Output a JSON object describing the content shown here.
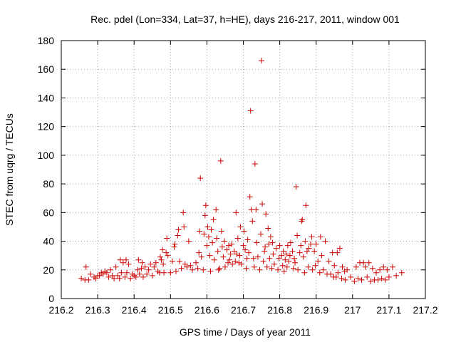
{
  "chart_data": {
    "type": "scatter",
    "title": "Rec. pdel (Lon=334, Lat=37, h=HE), days 216-217, 2011, window 001",
    "xlabel": "GPS time / Days of year 2011",
    "ylabel": "STEC from uqrg / TECUs",
    "xlim": [
      216.2,
      217.2
    ],
    "ylim": [
      0,
      180
    ],
    "xticks": [
      216.2,
      216.3,
      216.4,
      216.5,
      216.6,
      216.7,
      216.8,
      216.9,
      217,
      217.1,
      217.2
    ],
    "xtick_labels": [
      "216.2",
      "216.3",
      "216.4",
      "216.5",
      "216.6",
      "216.7",
      "216.8",
      "216.9",
      "217",
      "217.1",
      "217.2"
    ],
    "yticks": [
      0,
      20,
      40,
      60,
      80,
      100,
      120,
      140,
      160,
      180
    ],
    "ytick_labels": [
      "0",
      "20",
      "40",
      "60",
      "80",
      "100",
      "120",
      "140",
      "160",
      "180"
    ],
    "grid": true,
    "marker": "+",
    "color": "#cc0000",
    "points": [
      [
        216.255,
        14
      ],
      [
        216.265,
        13
      ],
      [
        216.268,
        22
      ],
      [
        216.275,
        13
      ],
      [
        216.28,
        17
      ],
      [
        216.29,
        15
      ],
      [
        216.295,
        14
      ],
      [
        216.3,
        16
      ],
      [
        216.305,
        16
      ],
      [
        216.31,
        18
      ],
      [
        216.315,
        17
      ],
      [
        216.32,
        19
      ],
      [
        216.325,
        18
      ],
      [
        216.33,
        15
      ],
      [
        216.335,
        20
      ],
      [
        216.34,
        16
      ],
      [
        216.345,
        14
      ],
      [
        216.35,
        22
      ],
      [
        216.355,
        16
      ],
      [
        216.36,
        14
      ],
      [
        216.362,
        27
      ],
      [
        216.365,
        18
      ],
      [
        216.37,
        25
      ],
      [
        216.375,
        15
      ],
      [
        216.378,
        27
      ],
      [
        216.38,
        18
      ],
      [
        216.385,
        24
      ],
      [
        216.39,
        14
      ],
      [
        216.395,
        17
      ],
      [
        216.4,
        16
      ],
      [
        216.405,
        15
      ],
      [
        216.41,
        20
      ],
      [
        216.412,
        27
      ],
      [
        216.415,
        17
      ],
      [
        216.42,
        21
      ],
      [
        216.422,
        25
      ],
      [
        216.425,
        15
      ],
      [
        216.43,
        22
      ],
      [
        216.435,
        17
      ],
      [
        216.44,
        20
      ],
      [
        216.445,
        24
      ],
      [
        216.45,
        16
      ],
      [
        216.455,
        22
      ],
      [
        216.46,
        25
      ],
      [
        216.465,
        19
      ],
      [
        216.47,
        18
      ],
      [
        216.472,
        29
      ],
      [
        216.475,
        27
      ],
      [
        216.478,
        34
      ],
      [
        216.48,
        24
      ],
      [
        216.482,
        18
      ],
      [
        216.488,
        32
      ],
      [
        216.49,
        42
      ],
      [
        216.493,
        30
      ],
      [
        216.5,
        18
      ],
      [
        216.505,
        26
      ],
      [
        216.51,
        36
      ],
      [
        216.512,
        38
      ],
      [
        216.515,
        19
      ],
      [
        216.52,
        44
      ],
      [
        216.522,
        48
      ],
      [
        216.525,
        26
      ],
      [
        216.53,
        21
      ],
      [
        216.535,
        60
      ],
      [
        216.537,
        50
      ],
      [
        216.54,
        24
      ],
      [
        216.545,
        22
      ],
      [
        216.55,
        40
      ],
      [
        216.555,
        23
      ],
      [
        216.56,
        20
      ],
      [
        216.57,
        25
      ],
      [
        216.575,
        21
      ],
      [
        216.578,
        32
      ],
      [
        216.58,
        47
      ],
      [
        216.582,
        84
      ],
      [
        216.585,
        29
      ],
      [
        216.59,
        20
      ],
      [
        216.592,
        45
      ],
      [
        216.595,
        58
      ],
      [
        216.597,
        65
      ],
      [
        216.6,
        37
      ],
      [
        216.602,
        50
      ],
      [
        216.605,
        43
      ],
      [
        216.608,
        30
      ],
      [
        216.61,
        19
      ],
      [
        216.612,
        48
      ],
      [
        216.615,
        39
      ],
      [
        216.618,
        55
      ],
      [
        216.62,
        27
      ],
      [
        216.625,
        62
      ],
      [
        216.627,
        42
      ],
      [
        216.63,
        33
      ],
      [
        216.632,
        20
      ],
      [
        216.635,
        21
      ],
      [
        216.638,
        96
      ],
      [
        216.64,
        47
      ],
      [
        216.642,
        36
      ],
      [
        216.645,
        29
      ],
      [
        216.648,
        40
      ],
      [
        216.65,
        22
      ],
      [
        216.655,
        34
      ],
      [
        216.658,
        25
      ],
      [
        216.66,
        37
      ],
      [
        216.662,
        27
      ],
      [
        216.665,
        31
      ],
      [
        216.668,
        38
      ],
      [
        216.67,
        24
      ],
      [
        216.675,
        33
      ],
      [
        216.678,
        26
      ],
      [
        216.68,
        60
      ],
      [
        216.682,
        31
      ],
      [
        216.685,
        42
      ],
      [
        216.688,
        25
      ],
      [
        216.69,
        30
      ],
      [
        216.692,
        50
      ],
      [
        216.695,
        24
      ],
      [
        216.7,
        37
      ],
      [
        216.702,
        47
      ],
      [
        216.705,
        34
      ],
      [
        216.708,
        21
      ],
      [
        216.71,
        28
      ],
      [
        216.712,
        41
      ],
      [
        216.715,
        32
      ],
      [
        216.718,
        71
      ],
      [
        216.72,
        131
      ],
      [
        216.722,
        62
      ],
      [
        216.725,
        54
      ],
      [
        216.728,
        28
      ],
      [
        216.73,
        22
      ],
      [
        216.732,
        94
      ],
      [
        216.735,
        62
      ],
      [
        216.737,
        39
      ],
      [
        216.74,
        29
      ],
      [
        216.745,
        20
      ],
      [
        216.748,
        45
      ],
      [
        216.75,
        166
      ],
      [
        216.752,
        66
      ],
      [
        216.755,
        26
      ],
      [
        216.758,
        33
      ],
      [
        216.76,
        36
      ],
      [
        216.762,
        59
      ],
      [
        216.765,
        22
      ],
      [
        216.768,
        49
      ],
      [
        216.77,
        38
      ],
      [
        216.772,
        28
      ],
      [
        216.775,
        43
      ],
      [
        216.778,
        21
      ],
      [
        216.78,
        39
      ],
      [
        216.782,
        31
      ],
      [
        216.785,
        24
      ],
      [
        216.79,
        35
      ],
      [
        216.795,
        20
      ],
      [
        216.798,
        28
      ],
      [
        216.8,
        37
      ],
      [
        216.805,
        30
      ],
      [
        216.808,
        23
      ],
      [
        216.81,
        33
      ],
      [
        216.812,
        19
      ],
      [
        216.815,
        27
      ],
      [
        216.818,
        31
      ],
      [
        216.82,
        22
      ],
      [
        216.822,
        37
      ],
      [
        216.825,
        26
      ],
      [
        216.828,
        30
      ],
      [
        216.83,
        39
      ],
      [
        216.835,
        33
      ],
      [
        216.838,
        21
      ],
      [
        216.84,
        28
      ],
      [
        216.842,
        25
      ],
      [
        216.845,
        78
      ],
      [
        216.848,
        44
      ],
      [
        216.85,
        20
      ],
      [
        216.855,
        32
      ],
      [
        216.858,
        37
      ],
      [
        216.86,
        54
      ],
      [
        216.862,
        55
      ],
      [
        216.865,
        29
      ],
      [
        216.868,
        18
      ],
      [
        216.87,
        40
      ],
      [
        216.872,
        65
      ],
      [
        216.875,
        33
      ],
      [
        216.878,
        22
      ],
      [
        216.88,
        35
      ],
      [
        216.885,
        38
      ],
      [
        216.888,
        43
      ],
      [
        216.89,
        20
      ],
      [
        216.895,
        33
      ],
      [
        216.898,
        23
      ],
      [
        216.9,
        38
      ],
      [
        216.905,
        26
      ],
      [
        216.91,
        18
      ],
      [
        216.912,
        43
      ],
      [
        216.915,
        30
      ],
      [
        216.92,
        20
      ],
      [
        216.925,
        40
      ],
      [
        216.93,
        17
      ],
      [
        216.935,
        26
      ],
      [
        216.94,
        17
      ],
      [
        216.945,
        32
      ],
      [
        216.948,
        15
      ],
      [
        216.95,
        23
      ],
      [
        216.955,
        15
      ],
      [
        216.958,
        32
      ],
      [
        216.96,
        18
      ],
      [
        216.965,
        35
      ],
      [
        216.97,
        14
      ],
      [
        216.972,
        22
      ],
      [
        216.978,
        19
      ],
      [
        216.98,
        13
      ],
      [
        216.985,
        20
      ],
      [
        216.995,
        15
      ],
      [
        217.005,
        12
      ],
      [
        217.01,
        22
      ],
      [
        217.015,
        14
      ],
      [
        217.02,
        25
      ],
      [
        217.025,
        13
      ],
      [
        217.03,
        25
      ],
      [
        217.035,
        22
      ],
      [
        217.04,
        15
      ],
      [
        217.045,
        25
      ],
      [
        217.05,
        12
      ],
      [
        217.055,
        21
      ],
      [
        217.06,
        13
      ],
      [
        217.065,
        18
      ],
      [
        217.07,
        13
      ],
      [
        217.075,
        20
      ],
      [
        217.08,
        14
      ],
      [
        217.085,
        22
      ],
      [
        217.09,
        13
      ],
      [
        217.095,
        20
      ],
      [
        217.1,
        15
      ],
      [
        217.11,
        22
      ],
      [
        217.12,
        16
      ],
      [
        217.135,
        18
      ]
    ]
  }
}
